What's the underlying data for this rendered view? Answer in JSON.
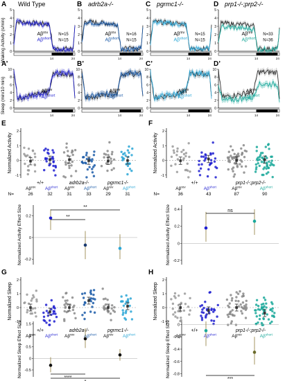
{
  "figure": {
    "panels": {
      "A": {
        "letter": "A",
        "title": "Wild Type",
        "ylabel": "Waking Activity (s/min)",
        "leg1": "Aβrev",
        "leg1n": "N=15",
        "leg2": "Aβshort",
        "leg2n": "N=15"
      },
      "B": {
        "letter": "B",
        "title": "adrb2a-/-",
        "leg1": "Aβrev",
        "leg1n": "N=16",
        "leg2": "Aβshort",
        "leg2n": "N=15"
      },
      "C": {
        "letter": "C",
        "title": "pgrmc1-/-",
        "leg1": "Aβrev",
        "leg1n": "N=15",
        "leg2": "Aβshort",
        "leg2n": "N=15"
      },
      "D": {
        "letter": "D",
        "title": "prp1-/-;prp2-/-",
        "leg1": "Aβrev",
        "leg1n": "N=33",
        "leg2": "Aβshort",
        "leg2n": "N=36"
      },
      "A2": {
        "letter": "A’",
        "ylabel": "Sleep (min/10 min)",
        "leg1": "Aβrev",
        "leg2": "Aβshort"
      },
      "B2": {
        "letter": "B’",
        "leg1": "Aβrev",
        "leg2": "Aβshort"
      },
      "C2": {
        "letter": "C’",
        "leg1": "Aβrev",
        "leg2": "Aβshort"
      },
      "D2": {
        "letter": "D’",
        "leg1": "Aβrev",
        "leg2": "Aβshort"
      },
      "E": {
        "letter": "E",
        "ylabel": "Normalized Activity",
        "eslabel": "Normalized Activity Effect Size",
        "g1": "+/+",
        "g2": "adrb2a-/-",
        "g3": "pgrmc1-/-",
        "nlabel": "N=",
        "rev": "Aβrev",
        "short": "Aβshort",
        "ns": [
          "26",
          "32",
          "31",
          "33",
          "29",
          "31"
        ],
        "sig1": "**",
        "sig2": "**"
      },
      "F": {
        "letter": "F",
        "ylabel": "Normalized Activity",
        "eslabel": "Normalized Activity Effect Size",
        "g1": "+/+",
        "g2": "prp1-/-;prp2-/-",
        "nlabel": "N=",
        "rev": "Aβrev",
        "short": "Aβshort",
        "ns": [
          "36",
          "43",
          "87",
          "90"
        ],
        "sig1": "ns"
      },
      "G": {
        "letter": "G",
        "ylabel": "Normalized Sleep",
        "eslabel": "Normalized Sleep Effect Size",
        "g1": "+/+",
        "g2": "adrb2a-/-",
        "g3": "pgrmc1-/-",
        "rev": "Aβrev",
        "short": "Aβshort",
        "sig1": "****",
        "sig2": "*"
      },
      "H": {
        "letter": "H",
        "ylabel": "Normalized Sleep",
        "eslabel": "Normalized Sleep Effect Size",
        "g1": "+/+",
        "g2": "prp1-/-;prp2-/-",
        "rev": "Aβrev",
        "short": "Aβshort",
        "sig1": "***"
      }
    },
    "timeticks": [
      "14",
      "24"
    ],
    "ticks": {
      "wakeY": [
        "0",
        "1",
        "2",
        "3",
        "4",
        "5"
      ],
      "sleepY": [
        "0",
        "2",
        "4",
        "6",
        "8",
        "10"
      ],
      "scatterY": [
        "-1",
        "0",
        "1",
        "2"
      ],
      "esE": [
        "0.2",
        "0",
        "-0.2"
      ],
      "esF": [
        "0.4",
        "0.2",
        "0",
        "-0.2"
      ],
      "esG": [
        "1.5",
        "1",
        "0.5",
        "0",
        "-0.5"
      ],
      "esH": [
        "0",
        "-0.2",
        "-0.4",
        "-0.6",
        "-0.8"
      ]
    },
    "colors": {
      "rev": "#222222",
      "revGray": "#8a8a8a",
      "wt": "#1f1fd0",
      "adrb": "#1a5aa8",
      "pg": "#2aa6d6",
      "prp": "#1aa89a"
    }
  },
  "chart_data": [
    {
      "type": "scatter",
      "panel": "E",
      "categories": [
        "+/+ Aβrev",
        "+/+ Aβshort",
        "adrb2a-/- Aβrev",
        "adrb2a-/- Aβshort",
        "pgrmc1-/- Aβrev",
        "pgrmc1-/- Aβshort"
      ],
      "values": [
        -0.05,
        0.05,
        0.05,
        -0.02,
        -0.03,
        -0.01
      ],
      "ylim": [
        -1.2,
        2.2
      ]
    },
    {
      "type": "scatter",
      "panel": "E-effect",
      "categories": [
        "Wild Type",
        "adrb2a-/-",
        "pgrmc1-/-"
      ],
      "values": [
        0.18,
        -0.07,
        -0.1
      ],
      "ci_low": [
        0.07,
        -0.2,
        -0.2
      ],
      "ci_high": [
        0.26,
        0.06,
        0.03
      ],
      "ylim": [
        -0.25,
        0.3
      ]
    },
    {
      "type": "scatter",
      "panel": "F",
      "categories": [
        "+/+ Aβrev",
        "+/+ Aβshort",
        "prp1-/-;prp2-/- Aβrev",
        "prp1-/-;prp2-/- Aβshort"
      ],
      "values": [
        -0.02,
        0.1,
        0.0,
        0.05
      ],
      "ylim": [
        -1.2,
        2.2
      ]
    },
    {
      "type": "scatter",
      "panel": "F-effect",
      "categories": [
        "Wild Type",
        "prp1-/-;prp2-/-"
      ],
      "values": [
        0.18,
        0.26
      ],
      "ci_low": [
        0.02,
        0.1
      ],
      "ci_high": [
        0.37,
        0.4
      ],
      "ylim": [
        -0.25,
        0.45
      ]
    },
    {
      "type": "scatter",
      "panel": "G",
      "categories": [
        "+/+ Aβrev",
        "+/+ Aβshort",
        "adrb2a-/- Aβrev",
        "adrb2a-/- Aβshort",
        "pgrmc1-/- Aβrev",
        "pgrmc1-/- Aβshort"
      ],
      "values": [
        0.0,
        -0.3,
        0.0,
        0.5,
        0.0,
        0.1
      ],
      "ylim": [
        -1.3,
        2.2
      ]
    },
    {
      "type": "scatter",
      "panel": "G-effect",
      "categories": [
        "Wild Type",
        "adrb2a-/-",
        "pgrmc1-/-"
      ],
      "values": [
        -0.3,
        0.85,
        0.15
      ],
      "ci_low": [
        -0.6,
        0.45,
        -0.1
      ],
      "ci_high": [
        0.05,
        1.3,
        0.4
      ],
      "ylim": [
        -0.8,
        1.6
      ]
    },
    {
      "type": "scatter",
      "panel": "H",
      "categories": [
        "+/+ Aβrev",
        "+/+ Aβshort",
        "prp1-/-;prp2-/- Aβrev",
        "prp1-/-;prp2-/- Aβshort"
      ],
      "values": [
        0.0,
        -0.2,
        0.0,
        -0.4
      ],
      "ylim": [
        -1.3,
        2.2
      ]
    },
    {
      "type": "scatter",
      "panel": "H-effect",
      "categories": [
        "Wild Type",
        "prp1-/-;prp2-/-"
      ],
      "values": [
        -0.1,
        -0.45
      ],
      "ci_low": [
        -0.35,
        -0.65
      ],
      "ci_high": [
        0.05,
        -0.2
      ],
      "ylim": [
        -0.85,
        0.05
      ]
    }
  ]
}
